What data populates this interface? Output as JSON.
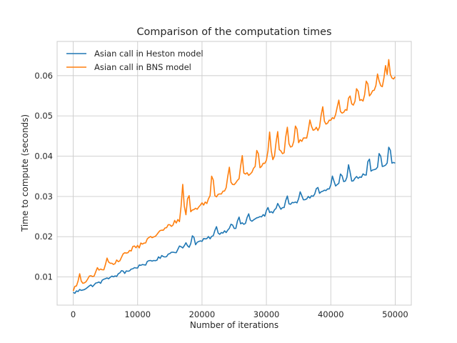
{
  "chart_data": {
    "type": "line",
    "title": "Comparison of the computation times",
    "xlabel": "Number of iterations",
    "ylabel": "Time to compute (seconds)",
    "xlim": [
      -2500,
      52500
    ],
    "ylim": [
      0.003,
      0.0685
    ],
    "xticks": [
      0,
      10000,
      20000,
      30000,
      40000,
      50000
    ],
    "xtick_labels": [
      "0",
      "10000",
      "20000",
      "30000",
      "40000",
      "50000"
    ],
    "yticks": [
      0.01,
      0.02,
      0.03,
      0.04,
      0.05,
      0.06
    ],
    "ytick_labels": [
      "0.01",
      "0.02",
      "0.03",
      "0.04",
      "0.05",
      "0.06"
    ],
    "grid": true,
    "legend_position": "upper-left",
    "series": [
      {
        "name": "Asian call in Heston model",
        "color": "#1f77b4",
        "base": {
          "start": [
            0,
            0.006
          ],
          "end": [
            50000,
            0.0385
          ]
        },
        "noise": 0.0004,
        "spikes": [
          [
            5200,
            0.0098
          ],
          [
            7600,
            0.0118
          ],
          [
            10800,
            0.0124
          ],
          [
            15600,
            0.016
          ],
          [
            16600,
            0.018
          ],
          [
            17500,
            0.0185
          ],
          [
            18600,
            0.021
          ],
          [
            22200,
            0.0228
          ],
          [
            24600,
            0.0235
          ],
          [
            25700,
            0.0252
          ],
          [
            27200,
            0.026
          ],
          [
            30200,
            0.0275
          ],
          [
            31800,
            0.0285
          ],
          [
            33200,
            0.0305
          ],
          [
            35300,
            0.0315
          ],
          [
            37900,
            0.0328
          ],
          [
            40300,
            0.0355
          ],
          [
            41600,
            0.0365
          ],
          [
            42800,
            0.0385
          ],
          [
            45900,
            0.0405
          ],
          [
            47600,
            0.042
          ],
          [
            49100,
            0.0438
          ]
        ]
      },
      {
        "name": "Asian call in BNS model",
        "color": "#ff7f0e",
        "base": {
          "start": [
            0,
            0.007
          ],
          "end": [
            50000,
            0.0595
          ]
        },
        "noise": 0.0006,
        "spikes": [
          [
            1000,
            0.0108
          ],
          [
            3800,
            0.0125
          ],
          [
            5300,
            0.015
          ],
          [
            8100,
            0.0162
          ],
          [
            9400,
            0.018
          ],
          [
            17000,
            0.033
          ],
          [
            17900,
            0.0318
          ],
          [
            21600,
            0.037
          ],
          [
            24200,
            0.038
          ],
          [
            26200,
            0.041
          ],
          [
            28600,
            0.043
          ],
          [
            30500,
            0.046
          ],
          [
            31700,
            0.047
          ],
          [
            33200,
            0.048
          ],
          [
            34600,
            0.049
          ],
          [
            36800,
            0.0495
          ],
          [
            38700,
            0.053
          ],
          [
            41200,
            0.0545
          ],
          [
            42900,
            0.056
          ],
          [
            44100,
            0.058
          ],
          [
            45600,
            0.06
          ],
          [
            47300,
            0.061
          ],
          [
            48500,
            0.0625
          ],
          [
            49000,
            0.064
          ]
        ]
      }
    ]
  }
}
